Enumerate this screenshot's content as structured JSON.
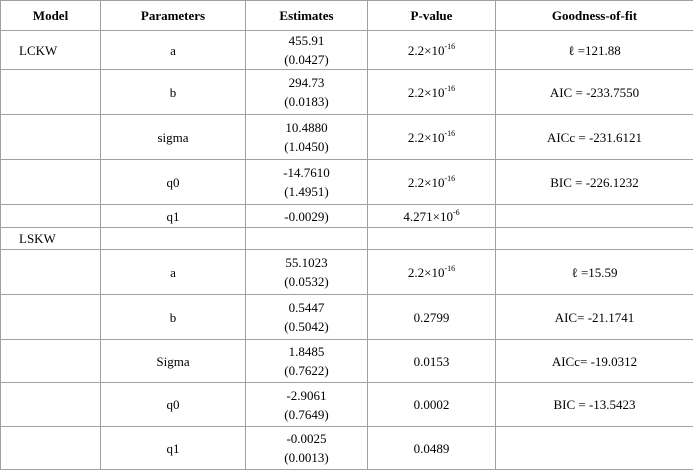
{
  "table": {
    "columns": [
      "Model",
      "Parameters",
      "Estimates",
      "P-value",
      "Goodness-of-fit"
    ],
    "rows": [
      {
        "model": "LCKW",
        "parameter": "a",
        "estimate": "455.91",
        "se": "(0.0427)",
        "p_value": "2.2×10",
        "p_exp": "-16",
        "fit": "ℓ =121.88"
      },
      {
        "parameter": "b",
        "estimate": "294.73",
        "se": "(0.0183)",
        "p_value": "2.2×10",
        "p_exp": "-16",
        "fit": "AIC = -233.7550"
      },
      {
        "parameter": "sigma",
        "estimate": "10.4880",
        "se": "(1.0450)",
        "p_value": "2.2×10",
        "p_exp": "-16",
        "fit": "AICc = -231.6121"
      },
      {
        "parameter": "q0",
        "estimate": "-14.7610",
        "se": "(1.4951)",
        "p_value": "2.2×10",
        "p_exp": "-16",
        "fit": "BIC = -226.1232"
      },
      {
        "parameter": "q1",
        "estimate": "-0.0029)",
        "p_value": "4.271×10",
        "p_exp": "-6"
      },
      {
        "model": "LSKW"
      },
      {
        "parameter": "a",
        "estimate": "55.1023",
        "se": "(0.0532)",
        "p_value": "2.2×10",
        "p_exp": "-16",
        "fit": "ℓ =15.59"
      },
      {
        "parameter": "b",
        "estimate": "0.5447",
        "se": "(0.5042)",
        "p_value": "0.2799",
        "fit": "AIC= -21.1741"
      },
      {
        "parameter": "Sigma",
        "estimate": "1.8485",
        "se": "(0.7622)",
        "p_value": "0.0153",
        "fit": "AICc= -19.0312"
      },
      {
        "parameter": "q0",
        "estimate": "-2.9061",
        "se": "(0.7649)",
        "p_value": "0.0002",
        "fit": "BIC = -13.5423"
      },
      {
        "parameter": "q1",
        "estimate": "-0.0025",
        "se": "(0.0013)",
        "p_value": "0.0489"
      }
    ]
  }
}
